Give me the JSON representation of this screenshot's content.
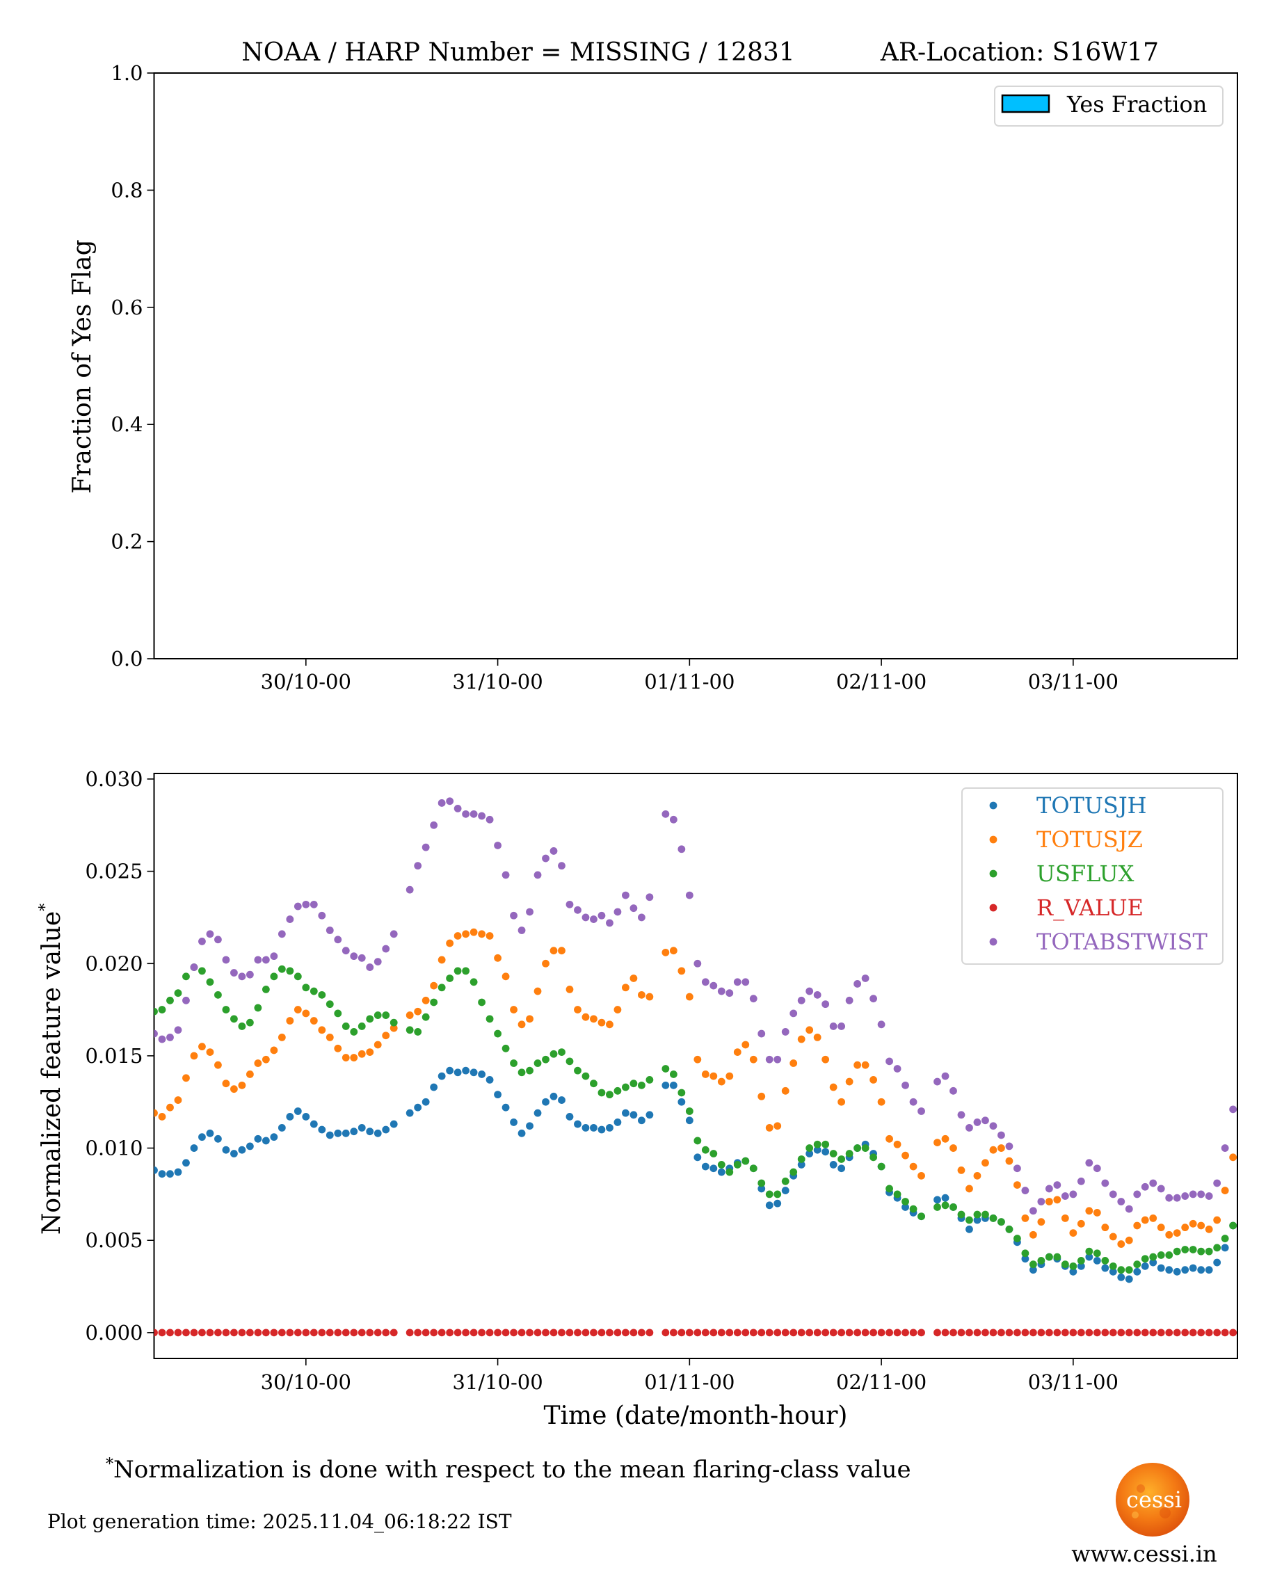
{
  "title": {
    "left": "NOAA / HARP Number = MISSING / 12831",
    "right": "AR-Location: S16W17"
  },
  "footnote": {
    "marker": "*",
    "text": "Normalization is done with respect to the mean flaring-class value"
  },
  "generation_time": "Plot generation time: 2025.11.04_06:18:22 IST",
  "logo": {
    "text": "cessi",
    "url_text": "www.cessi.in"
  },
  "chart_data": [
    {
      "type": "bar",
      "ylabel": "Fraction of Yes Flag",
      "ylim": [
        0,
        1.0
      ],
      "yticks": [
        "0.0",
        "0.2",
        "0.4",
        "0.6",
        "0.8",
        "1.0"
      ],
      "xlim": [
        "29/10-05",
        "03/11-20"
      ],
      "xticks": [
        "30/10-00",
        "31/10-00",
        "01/11-00",
        "02/11-00",
        "03/11-00"
      ],
      "legend": {
        "placement": "upper-right",
        "entries": [
          {
            "name": "Yes Fraction",
            "color": "#00bfff"
          }
        ]
      },
      "values": [],
      "grid": false
    },
    {
      "type": "scatter",
      "xlabel": "Time (date/month-hour)",
      "ylabel": "Normalized feature value",
      "ylabel_marker": "*",
      "ylim": [
        -0.0014,
        0.0303
      ],
      "yticks": [
        "0.000",
        "0.005",
        "0.010",
        "0.015",
        "0.020",
        "0.025",
        "0.030"
      ],
      "xlim": [
        "29/10-05",
        "03/11-20"
      ],
      "xticks": [
        "30/10-00",
        "31/10-00",
        "01/11-00",
        "02/11-00",
        "03/11-00"
      ],
      "legend_placement": "upper-right",
      "grid": false,
      "x": [
        "29/10-05",
        "29/10-06",
        "29/10-07",
        "29/10-08",
        "29/10-09",
        "29/10-10",
        "29/10-11",
        "29/10-12",
        "29/10-13",
        "29/10-14",
        "29/10-15",
        "29/10-16",
        "29/10-17",
        "29/10-18",
        "29/10-19",
        "29/10-20",
        "29/10-21",
        "29/10-22",
        "29/10-23",
        "30/10-00",
        "30/10-01",
        "30/10-02",
        "30/10-03",
        "30/10-04",
        "30/10-05",
        "30/10-06",
        "30/10-07",
        "30/10-08",
        "30/10-09",
        "30/10-10",
        "30/10-11",
        "30/10-12",
        "30/10-13",
        "30/10-14",
        "30/10-15",
        "30/10-16",
        "30/10-17",
        "30/10-18",
        "30/10-19",
        "30/10-20",
        "30/10-21",
        "30/10-22",
        "30/10-23",
        "31/10-00",
        "31/10-01",
        "31/10-02",
        "31/10-03",
        "31/10-04",
        "31/10-05",
        "31/10-06",
        "31/10-07",
        "31/10-08",
        "31/10-09",
        "31/10-10",
        "31/10-11",
        "31/10-12",
        "31/10-13",
        "31/10-14",
        "31/10-15",
        "31/10-16",
        "31/10-17",
        "31/10-18",
        "31/10-19",
        "31/10-20",
        "31/10-21",
        "31/10-22",
        "31/10-23",
        "01/11-00",
        "01/11-01",
        "01/11-02",
        "01/11-03",
        "01/11-04",
        "01/11-05",
        "01/11-06",
        "01/11-07",
        "01/11-08",
        "01/11-09",
        "01/11-10",
        "01/11-11",
        "01/11-12",
        "01/11-13",
        "01/11-14",
        "01/11-15",
        "01/11-16",
        "01/11-17",
        "01/11-18",
        "01/11-19",
        "01/11-20",
        "01/11-21",
        "01/11-22",
        "01/11-23",
        "02/11-00",
        "02/11-01",
        "02/11-02",
        "02/11-03",
        "02/11-04",
        "02/11-05",
        "02/11-06",
        "02/11-07",
        "02/11-08",
        "02/11-09",
        "02/11-10",
        "02/11-11",
        "02/11-12",
        "02/11-13",
        "02/11-14",
        "02/11-15",
        "02/11-16",
        "02/11-17",
        "02/11-18",
        "02/11-19",
        "02/11-20",
        "02/11-21",
        "02/11-22",
        "02/11-23",
        "03/11-00",
        "03/11-01",
        "03/11-02",
        "03/11-03",
        "03/11-04",
        "03/11-05",
        "03/11-06",
        "03/11-07",
        "03/11-08",
        "03/11-09",
        "03/11-10",
        "03/11-11",
        "03/11-12",
        "03/11-13",
        "03/11-14",
        "03/11-15",
        "03/11-16",
        "03/11-17",
        "03/11-18",
        "03/11-19",
        "03/11-20"
      ],
      "series": [
        {
          "name": "TOTUSJH",
          "color": "#1f77b4",
          "values": [
            0.0088,
            0.0086,
            0.0086,
            0.0087,
            0.0092,
            0.01,
            0.0106,
            0.0108,
            0.0105,
            0.0099,
            0.0097,
            0.0099,
            0.0101,
            0.0105,
            0.0104,
            0.0106,
            0.0111,
            0.0117,
            0.012,
            0.0117,
            0.0113,
            0.011,
            0.0107,
            0.0108,
            0.0108,
            0.0109,
            0.0111,
            0.0109,
            0.0108,
            0.011,
            0.0113,
            null,
            0.0119,
            0.0122,
            0.0125,
            0.0133,
            0.0139,
            0.0142,
            0.0141,
            0.0142,
            0.0141,
            0.014,
            0.0137,
            0.0129,
            0.0122,
            0.0114,
            0.0108,
            0.0112,
            0.0119,
            0.0125,
            0.0128,
            0.0126,
            0.0117,
            0.0113,
            0.0111,
            0.0111,
            0.011,
            0.0111,
            0.0114,
            0.0119,
            0.0118,
            0.0115,
            0.0118,
            null,
            0.0134,
            0.0134,
            0.0125,
            0.0115,
            0.0095,
            0.009,
            0.0089,
            0.0087,
            0.0089,
            0.0092,
            0.0093,
            0.0089,
            0.0078,
            0.0069,
            0.007,
            0.0077,
            0.0085,
            0.0091,
            0.0097,
            0.0099,
            0.0098,
            0.0091,
            0.0089,
            0.0095,
            0.01,
            0.0102,
            0.0097,
            0.009,
            0.0076,
            0.0073,
            0.0068,
            0.0065,
            0.0063,
            null,
            0.0072,
            0.0073,
            0.0068,
            0.0062,
            0.0056,
            0.0061,
            0.0062,
            0.0062,
            0.006,
            0.0056,
            0.0049,
            0.004,
            0.0034,
            0.0037,
            0.0041,
            0.004,
            0.0036,
            0.0033,
            0.0036,
            0.0041,
            0.0039,
            0.0035,
            0.0033,
            0.003,
            0.0029,
            0.0033,
            0.0036,
            0.0038,
            0.0035,
            0.0034,
            0.0033,
            0.0034,
            0.0035,
            0.0034,
            0.0034,
            0.0038,
            0.0046,
            0.0058
          ]
        },
        {
          "name": "TOTUSJZ",
          "color": "#ff7f0e",
          "values": [
            0.0119,
            0.0117,
            0.0122,
            0.0126,
            0.0138,
            0.015,
            0.0155,
            0.0152,
            0.0145,
            0.0135,
            0.0132,
            0.0134,
            0.014,
            0.0146,
            0.0148,
            0.0153,
            0.016,
            0.0169,
            0.0175,
            0.0173,
            0.0169,
            0.0164,
            0.016,
            0.0154,
            0.0149,
            0.0149,
            0.0151,
            0.0152,
            0.0156,
            0.0161,
            0.0165,
            null,
            0.0172,
            0.0174,
            0.018,
            0.0188,
            0.0202,
            0.0211,
            0.0215,
            0.0216,
            0.0217,
            0.0216,
            0.0215,
            0.0203,
            0.0193,
            0.0175,
            0.0167,
            0.017,
            0.0185,
            0.02,
            0.0207,
            0.0207,
            0.0186,
            0.0175,
            0.0171,
            0.017,
            0.0168,
            0.0167,
            0.0175,
            0.0187,
            0.0192,
            0.0183,
            0.0182,
            null,
            0.0206,
            0.0207,
            0.0196,
            0.0182,
            0.0148,
            0.014,
            0.0139,
            0.0136,
            0.0139,
            0.0152,
            0.0156,
            0.0148,
            0.0128,
            0.0111,
            0.0112,
            0.0131,
            0.0146,
            0.0159,
            0.0164,
            0.016,
            0.0148,
            0.0133,
            0.0125,
            0.0136,
            0.0145,
            0.0145,
            0.0137,
            0.0125,
            0.0105,
            0.0102,
            0.0096,
            0.009,
            0.0085,
            null,
            0.0103,
            0.0105,
            0.01,
            0.0088,
            0.0078,
            0.0085,
            0.0092,
            0.0099,
            0.01,
            0.0093,
            0.008,
            0.0062,
            0.0053,
            0.006,
            0.0071,
            0.0072,
            0.0062,
            0.0054,
            0.0059,
            0.0066,
            0.0065,
            0.0057,
            0.0052,
            0.0048,
            0.005,
            0.0058,
            0.0061,
            0.0062,
            0.0057,
            0.0053,
            0.0054,
            0.0057,
            0.0059,
            0.0058,
            0.0056,
            0.0061,
            0.0077,
            0.0095
          ]
        },
        {
          "name": "USFLUX",
          "color": "#2ca02c",
          "values": [
            0.0174,
            0.0175,
            0.018,
            0.0184,
            0.0193,
            0.0198,
            0.0196,
            0.019,
            0.0183,
            0.0175,
            0.017,
            0.0166,
            0.0168,
            0.0176,
            0.0186,
            0.0193,
            0.0197,
            0.0196,
            0.0193,
            0.0187,
            0.0185,
            0.0183,
            0.0178,
            0.0173,
            0.0166,
            0.0163,
            0.0166,
            0.017,
            0.0172,
            0.0172,
            0.0168,
            null,
            0.0164,
            0.0163,
            0.0171,
            0.0179,
            0.0187,
            0.0192,
            0.0196,
            0.0196,
            0.019,
            0.0179,
            0.017,
            0.0162,
            0.0154,
            0.0146,
            0.0141,
            0.0142,
            0.0146,
            0.0148,
            0.0151,
            0.0152,
            0.0147,
            0.0142,
            0.0139,
            0.0135,
            0.013,
            0.0129,
            0.0131,
            0.0133,
            0.0135,
            0.0134,
            0.0137,
            null,
            0.0143,
            0.014,
            0.013,
            0.012,
            0.0104,
            0.0099,
            0.0097,
            0.0091,
            0.0087,
            0.0091,
            0.0093,
            0.0089,
            0.0081,
            0.0075,
            0.0075,
            0.0082,
            0.0087,
            0.0094,
            0.01,
            0.0102,
            0.0102,
            0.0097,
            0.0094,
            0.0097,
            0.01,
            0.01,
            0.0095,
            0.009,
            0.0078,
            0.0075,
            0.0071,
            0.0067,
            0.0063,
            null,
            0.0068,
            0.0069,
            0.0068,
            0.0064,
            0.0061,
            0.0064,
            0.0064,
            0.0062,
            0.006,
            0.0056,
            0.0051,
            0.0043,
            0.0037,
            0.0039,
            0.0041,
            0.0041,
            0.0037,
            0.0036,
            0.0039,
            0.0044,
            0.0043,
            0.0039,
            0.0036,
            0.0034,
            0.0034,
            0.0037,
            0.004,
            0.0041,
            0.0042,
            0.0042,
            0.0044,
            0.0045,
            0.0045,
            0.0044,
            0.0044,
            0.0046,
            0.0051,
            0.0058
          ]
        },
        {
          "name": "R_VALUE",
          "color": "#d62728",
          "values": [
            0,
            0,
            0,
            0,
            0,
            0,
            0,
            0,
            0,
            0,
            0,
            0,
            0,
            0,
            0,
            0,
            0,
            0,
            0,
            0,
            0,
            0,
            0,
            0,
            0,
            0,
            0,
            0,
            0,
            0,
            0,
            null,
            0,
            0,
            0,
            0,
            0,
            0,
            0,
            0,
            0,
            0,
            0,
            0,
            0,
            0,
            0,
            0,
            0,
            0,
            0,
            0,
            0,
            0,
            0,
            0,
            0,
            0,
            0,
            0,
            0,
            0,
            0,
            null,
            0,
            0,
            0,
            0,
            0,
            0,
            0,
            0,
            0,
            0,
            0,
            0,
            0,
            0,
            0,
            0,
            0,
            0,
            0,
            0,
            0,
            0,
            0,
            0,
            0,
            0,
            0,
            0,
            0,
            0,
            0,
            0,
            0,
            null,
            0,
            0,
            0,
            0,
            0,
            0,
            0,
            0,
            0,
            0,
            0,
            0,
            0,
            0,
            0,
            0,
            0,
            0,
            0,
            0,
            0,
            0,
            0,
            0,
            0,
            0,
            0,
            0,
            0,
            0,
            0,
            0,
            0,
            0,
            0,
            0,
            0,
            0
          ]
        },
        {
          "name": "TOTABSTWIST",
          "color": "#9467bd",
          "values": [
            0.0162,
            0.0159,
            0.016,
            0.0164,
            0.018,
            0.0198,
            0.0212,
            0.0216,
            0.0213,
            0.0202,
            0.0195,
            0.0193,
            0.0194,
            0.0202,
            0.0202,
            0.0204,
            0.0216,
            0.0224,
            0.0231,
            0.0232,
            0.0232,
            0.0226,
            0.0218,
            0.0213,
            0.0207,
            0.0204,
            0.0203,
            0.0198,
            0.0201,
            0.0208,
            0.0216,
            null,
            0.024,
            0.0253,
            0.0263,
            0.0275,
            0.0287,
            0.0288,
            0.0284,
            0.0281,
            0.0281,
            0.028,
            0.0278,
            0.0264,
            0.0248,
            0.0226,
            0.0218,
            0.0228,
            0.0248,
            0.0257,
            0.0261,
            0.0253,
            0.0232,
            0.0229,
            0.0225,
            0.0224,
            0.0226,
            0.0222,
            0.0228,
            0.0237,
            0.023,
            0.0225,
            0.0236,
            null,
            0.0281,
            0.0278,
            0.0262,
            0.0237,
            0.02,
            0.019,
            0.0188,
            0.0185,
            0.0184,
            0.019,
            0.019,
            0.0181,
            0.0162,
            0.0148,
            0.0148,
            0.0163,
            0.0173,
            0.018,
            0.0185,
            0.0183,
            0.0178,
            0.0166,
            0.0166,
            0.018,
            0.0189,
            0.0192,
            0.0181,
            0.0167,
            0.0147,
            0.0143,
            0.0134,
            0.0125,
            0.012,
            null,
            0.0136,
            0.0139,
            0.0131,
            0.0118,
            0.0111,
            0.0114,
            0.0115,
            0.0112,
            0.0107,
            0.0101,
            0.0089,
            0.0077,
            0.0066,
            0.0071,
            0.0078,
            0.008,
            0.0074,
            0.0075,
            0.0082,
            0.0092,
            0.0089,
            0.0081,
            0.0075,
            0.0071,
            0.0067,
            0.0075,
            0.0079,
            0.0081,
            0.0078,
            0.0073,
            0.0073,
            0.0074,
            0.0075,
            0.0075,
            0.0074,
            0.0081,
            0.01,
            0.0121
          ]
        }
      ]
    }
  ]
}
